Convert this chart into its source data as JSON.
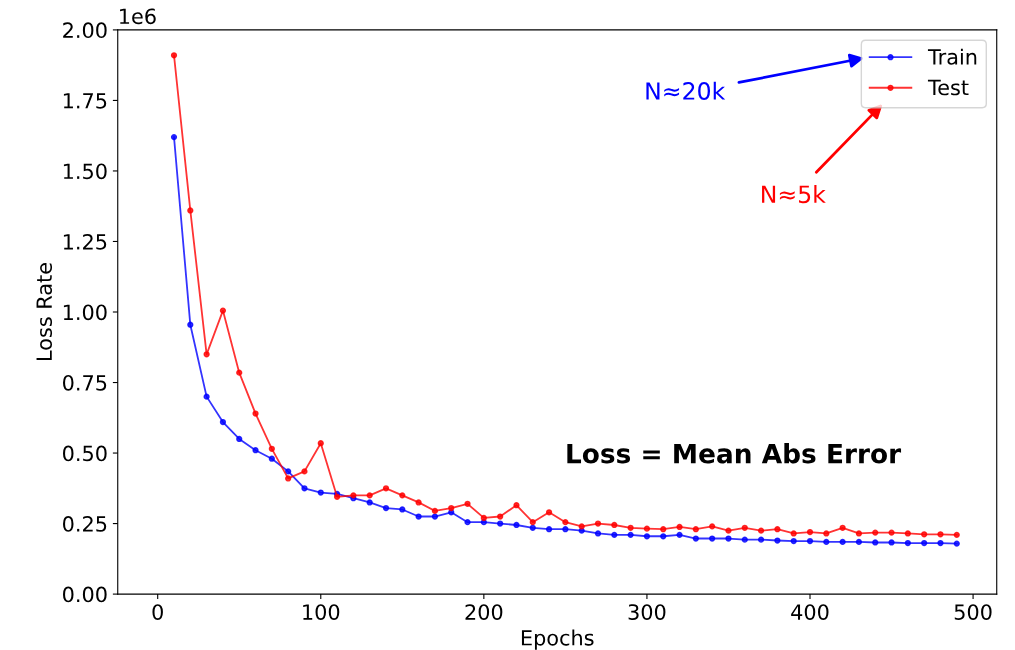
{
  "chart_data": {
    "type": "line",
    "xlabel": "Epochs",
    "ylabel": "Loss Rate",
    "x": [
      10,
      20,
      30,
      40,
      50,
      60,
      70,
      80,
      90,
      100,
      110,
      120,
      130,
      140,
      150,
      160,
      170,
      180,
      190,
      200,
      210,
      220,
      230,
      240,
      250,
      260,
      270,
      280,
      290,
      300,
      310,
      320,
      330,
      340,
      350,
      360,
      370,
      380,
      390,
      400,
      410,
      420,
      430,
      440,
      450,
      460,
      470,
      480,
      490
    ],
    "series": [
      {
        "name": "Train",
        "color": "#0000ff",
        "values": [
          1.62,
          0.955,
          0.7,
          0.61,
          0.55,
          0.51,
          0.48,
          0.435,
          0.375,
          0.36,
          0.355,
          0.34,
          0.325,
          0.305,
          0.3,
          0.275,
          0.275,
          0.29,
          0.255,
          0.255,
          0.25,
          0.245,
          0.235,
          0.23,
          0.23,
          0.225,
          0.215,
          0.21,
          0.21,
          0.205,
          0.205,
          0.21,
          0.197,
          0.197,
          0.197,
          0.193,
          0.193,
          0.19,
          0.188,
          0.188,
          0.185,
          0.185,
          0.185,
          0.183,
          0.183,
          0.181,
          0.181,
          0.181,
          0.179
        ]
      },
      {
        "name": "Test",
        "color": "#ff0000",
        "values": [
          1.91,
          1.36,
          0.85,
          1.005,
          0.785,
          0.64,
          0.515,
          0.41,
          0.435,
          0.535,
          0.345,
          0.35,
          0.35,
          0.375,
          0.35,
          0.325,
          0.295,
          0.305,
          0.32,
          0.27,
          0.275,
          0.315,
          0.255,
          0.29,
          0.255,
          0.24,
          0.25,
          0.245,
          0.235,
          0.232,
          0.23,
          0.238,
          0.23,
          0.24,
          0.225,
          0.235,
          0.225,
          0.23,
          0.215,
          0.22,
          0.215,
          0.235,
          0.215,
          0.218,
          0.218,
          0.215,
          0.212,
          0.212,
          0.21
        ]
      }
    ],
    "xlim": [
      -24.5,
      514.5
    ],
    "xticks": [
      0,
      100,
      200,
      300,
      400,
      500
    ],
    "ylim": [
      0,
      2
    ],
    "yticks": [
      {
        "value": 0,
        "label": "0.00"
      },
      0.25,
      {
        "value": 0.5,
        "label": "0.50"
      },
      0.75,
      {
        "value": 1,
        "label": "1.00"
      },
      1.25,
      {
        "value": 1.5,
        "label": "1.50"
      },
      1.75,
      {
        "value": 2,
        "label": "2.00"
      }
    ],
    "annotations": [
      "1e6",
      "Loss = Mean Abs Error",
      "N≈20k",
      "N≈5k"
    ],
    "legend": "top right",
    "marker": "circle",
    "line_style": "solid",
    "grid": false
  }
}
